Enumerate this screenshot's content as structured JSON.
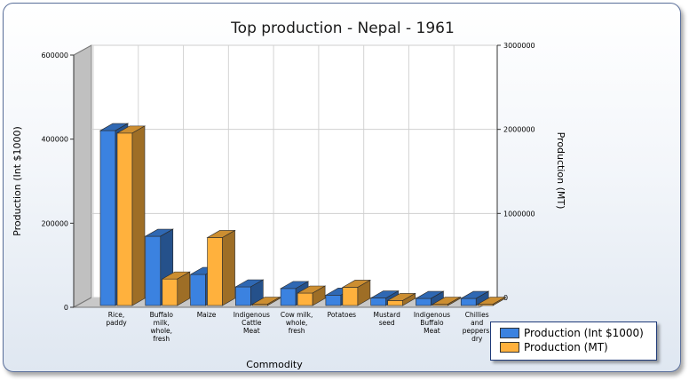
{
  "chart_data": {
    "type": "bar",
    "title": "Top production - Nepal - 1961",
    "xlabel": "Commodity",
    "ylabel": "Production (Int $1000)",
    "y2label": "Production (MT)",
    "ylim": [
      0,
      600000
    ],
    "y2lim": [
      0,
      3000000
    ],
    "yticks": [
      "0",
      "200000",
      "400000",
      "600000"
    ],
    "y2ticks": [
      "0",
      "1000000",
      "2000000",
      "3000000"
    ],
    "categories": [
      [
        "Rice,",
        "paddy"
      ],
      [
        "Buffalo",
        "milk,",
        "whole,",
        "fresh"
      ],
      [
        "Maize"
      ],
      [
        "Indigenous",
        "Cattle",
        "Meat"
      ],
      [
        "Cow milk,",
        "whole,",
        "fresh"
      ],
      [
        "Potatoes"
      ],
      [
        "Mustard",
        "seed"
      ],
      [
        "Indigenous",
        "Buffalo",
        "Meat"
      ],
      [
        "Chillies",
        "and",
        "peppers,",
        "dry"
      ]
    ],
    "series": [
      {
        "name": "Production (Int $1000)",
        "axis": "left",
        "color": "#3b82e0",
        "values": [
          422000,
          167000,
          75000,
          45000,
          41000,
          25000,
          18000,
          17000,
          17000
        ]
      },
      {
        "name": "Production (MT)",
        "axis": "right",
        "color": "#ffb13d",
        "values": [
          2080000,
          320000,
          820000,
          15000,
          150000,
          220000,
          60000,
          15000,
          10000
        ]
      }
    ],
    "legend_position": "bottom-right"
  }
}
